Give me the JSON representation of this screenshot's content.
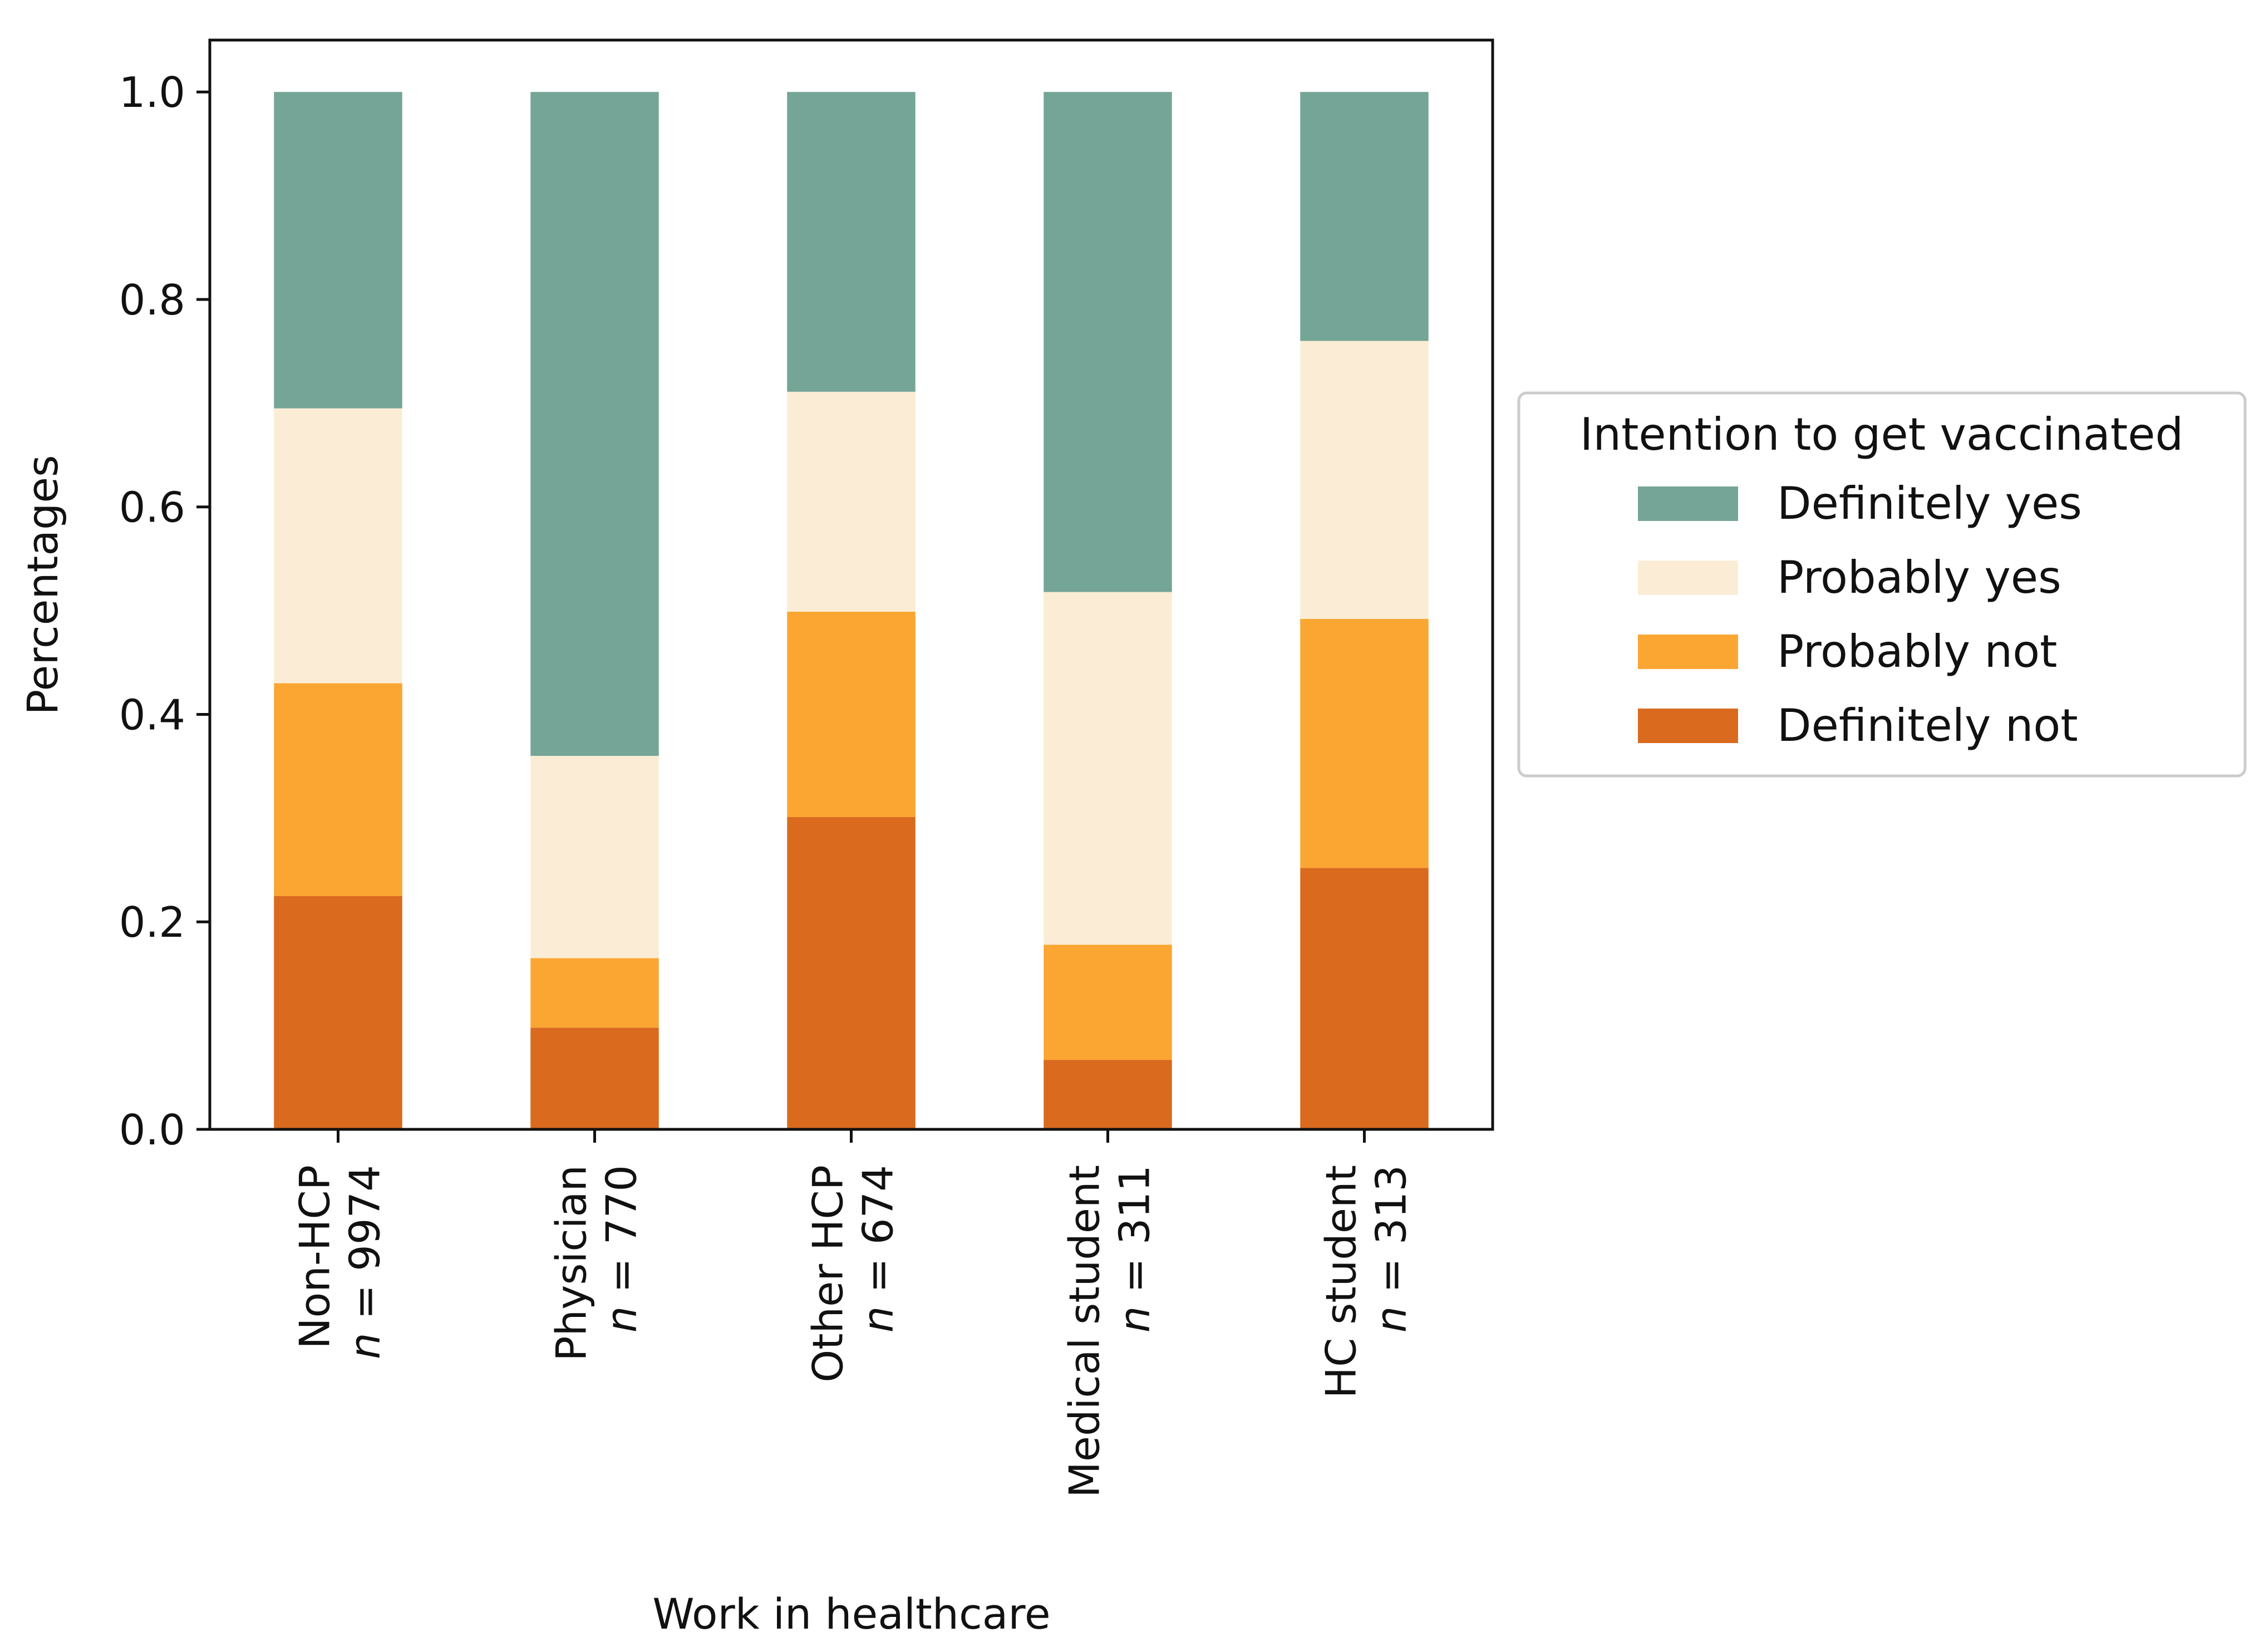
{
  "chart_data": {
    "type": "bar",
    "stacked": true,
    "categories": [
      "Non-HCP",
      "Physician",
      "Other HCP",
      "Medical student",
      "HC student"
    ],
    "category_n": [
      "9974",
      "770",
      "674",
      "311",
      "313"
    ],
    "n_prefix": "n",
    "n_equals": "=",
    "series": [
      {
        "name": "Definitely not",
        "color": "#d96a1e",
        "values": [
          0.225,
          0.098,
          0.301,
          0.067,
          0.252
        ]
      },
      {
        "name": "Probably not",
        "color": "#fba632",
        "values": [
          0.205,
          0.067,
          0.198,
          0.111,
          0.24
        ]
      },
      {
        "name": "Probably yes",
        "color": "#fbedd5",
        "values": [
          0.265,
          0.195,
          0.212,
          0.34,
          0.268
        ]
      },
      {
        "name": "Definitely yes",
        "color": "#75a596",
        "values": [
          0.305,
          0.64,
          0.289,
          0.482,
          0.24
        ]
      }
    ],
    "title": "",
    "xlabel": "Work in healthcare",
    "ylabel": "Percentages",
    "ylim": [
      0.0,
      1.05
    ],
    "yticks": [
      0.0,
      0.2,
      0.4,
      0.6,
      0.8,
      1.0
    ],
    "ytick_labels": [
      "0.0",
      "0.2",
      "0.4",
      "0.6",
      "0.8",
      "1.0"
    ],
    "grid": false,
    "legend": {
      "title": "Intention to get vaccinated",
      "placement": "outside-right",
      "order": [
        "Definitely yes",
        "Probably yes",
        "Probably not",
        "Definitely not"
      ]
    }
  }
}
